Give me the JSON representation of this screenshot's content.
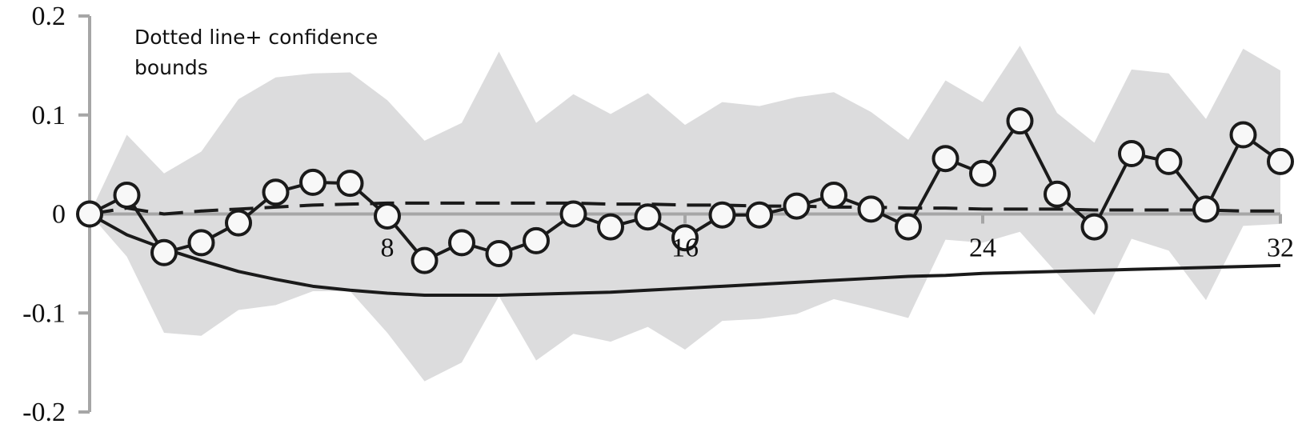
{
  "chart_data": {
    "type": "line",
    "title": "",
    "xlabel": "",
    "ylabel": "",
    "xlim": [
      0,
      32
    ],
    "ylim": [
      -0.2,
      0.2
    ],
    "x_ticks": [
      8,
      16,
      24,
      32
    ],
    "y_ticks": [
      0.2,
      0.1,
      0,
      -0.1,
      -0.2
    ],
    "y_tick_labels": [
      "0.2",
      "0.1",
      "0",
      "-0.1",
      "-0.2"
    ],
    "annotation_lines": [
      "Dotted line+ confidence",
      "bounds"
    ],
    "x": [
      0,
      1,
      2,
      3,
      4,
      5,
      6,
      7,
      8,
      9,
      10,
      11,
      12,
      13,
      14,
      15,
      16,
      17,
      18,
      19,
      20,
      21,
      22,
      23,
      24,
      25,
      26,
      27,
      28,
      29,
      30,
      31,
      32
    ],
    "band": {
      "upper": [
        0,
        0.08,
        0.041,
        0.063,
        0.116,
        0.138,
        0.142,
        0.143,
        0.115,
        0.074,
        0.092,
        0.164,
        0.092,
        0.121,
        0.101,
        0.122,
        0.09,
        0.113,
        0.109,
        0.118,
        0.123,
        0.103,
        0.075,
        0.135,
        0.113,
        0.17,
        0.102,
        0.072,
        0.146,
        0.142,
        0.096,
        0.167,
        0.145
      ],
      "lower": [
        0,
        -0.043,
        -0.12,
        -0.123,
        -0.097,
        -0.092,
        -0.078,
        -0.078,
        -0.12,
        -0.169,
        -0.15,
        -0.083,
        -0.148,
        -0.121,
        -0.129,
        -0.114,
        -0.137,
        -0.108,
        -0.106,
        -0.101,
        -0.086,
        -0.095,
        -0.105,
        -0.026,
        -0.029,
        -0.018,
        -0.06,
        -0.102,
        -0.025,
        -0.037,
        -0.087,
        -0.012,
        -0.01
      ],
      "color": "#dcdcdd"
    },
    "series": [
      {
        "style": "line with open circle markers",
        "color": "#1a1a1a",
        "values": [
          0,
          0.019,
          -0.039,
          -0.029,
          -0.009,
          0.022,
          0.032,
          0.031,
          -0.002,
          -0.047,
          -0.029,
          -0.04,
          -0.027,
          0.0,
          -0.013,
          -0.003,
          -0.024,
          -0.001,
          -0.001,
          0.008,
          0.019,
          0.005,
          -0.013,
          0.056,
          0.041,
          0.094,
          0.02,
          -0.013,
          0.061,
          0.053,
          0.005,
          0.08,
          0.053
        ]
      },
      {
        "style": "dashed",
        "color": "#1a1a1a",
        "values": [
          0,
          0.006,
          0.0,
          0.003,
          0.005,
          0.007,
          0.009,
          0.01,
          0.011,
          0.011,
          0.011,
          0.011,
          0.011,
          0.011,
          0.01,
          0.01,
          0.009,
          0.009,
          0.008,
          0.008,
          0.007,
          0.007,
          0.006,
          0.006,
          0.005,
          0.005,
          0.005,
          0.004,
          0.004,
          0.004,
          0.004,
          0.003,
          0.003
        ]
      },
      {
        "style": "solid",
        "color": "#1a1a1a",
        "values": [
          0,
          -0.021,
          -0.035,
          -0.047,
          -0.058,
          -0.066,
          -0.073,
          -0.077,
          -0.08,
          -0.082,
          -0.082,
          -0.082,
          -0.081,
          -0.08,
          -0.079,
          -0.077,
          -0.075,
          -0.073,
          -0.071,
          -0.069,
          -0.067,
          -0.065,
          -0.063,
          -0.062,
          -0.06,
          -0.059,
          -0.058,
          -0.057,
          -0.056,
          -0.055,
          -0.054,
          -0.053,
          -0.052
        ]
      }
    ],
    "axis_color": "#a6a6a6"
  }
}
